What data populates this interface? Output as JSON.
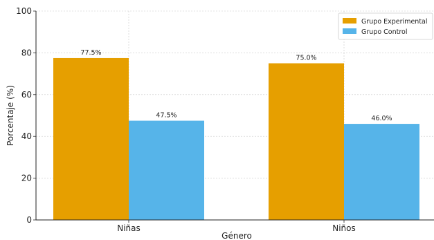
{
  "chart_data": {
    "type": "bar",
    "title": "",
    "xlabel": "Género",
    "ylabel": "Porcentaje (%)",
    "categories": [
      "Niñas",
      "Niños"
    ],
    "ylim": [
      0,
      100
    ],
    "yticks": [
      0,
      20,
      40,
      60,
      80,
      100
    ],
    "grid": true,
    "legend_position": "top-right",
    "series": [
      {
        "name": "Grupo Experimental",
        "color": "#e69f00",
        "values": [
          77.5,
          75.0
        ],
        "labels": [
          "77.5%",
          "75.0%"
        ]
      },
      {
        "name": "Grupo Control",
        "color": "#56b4e9",
        "values": [
          47.5,
          46.0
        ],
        "labels": [
          "47.5%",
          "46.0%"
        ]
      }
    ]
  }
}
